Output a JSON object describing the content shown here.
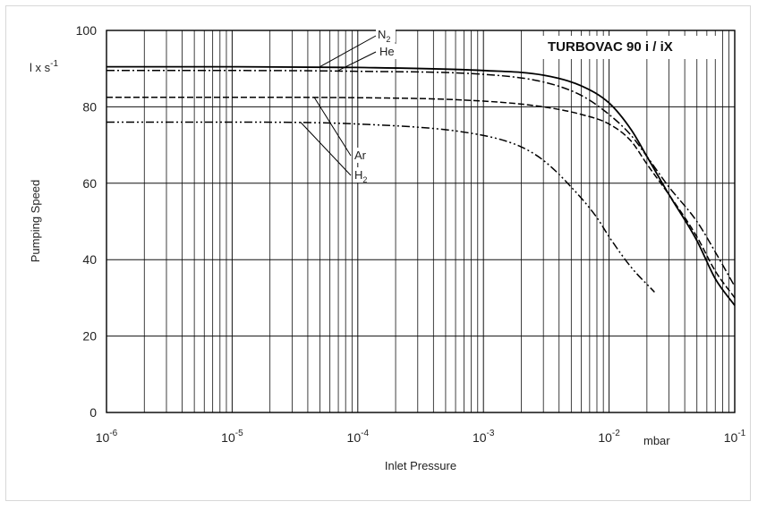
{
  "chart_data": {
    "type": "line",
    "title": "TURBOVAC 90 i / iX",
    "xlabel": "Inlet Pressure",
    "x_unit": "mbar",
    "ylabel": "Pumping Speed",
    "y_unit": "l x s",
    "y_unit_exponent": "-1",
    "x_scale": "log",
    "xlim": [
      1e-06,
      0.1
    ],
    "ylim": [
      0,
      100
    ],
    "grid": true,
    "legend": "leader-line labels at upper-left",
    "x_ticks": [
      {
        "value": 1e-06,
        "base": "10",
        "exp": "-6"
      },
      {
        "value": 1e-05,
        "base": "10",
        "exp": "-5"
      },
      {
        "value": 0.0001,
        "base": "10",
        "exp": "-4"
      },
      {
        "value": 0.001,
        "base": "10",
        "exp": "-3"
      },
      {
        "value": 0.01,
        "base": "10",
        "exp": "-2"
      },
      {
        "value": 0.1,
        "base": "10",
        "exp": "-1"
      }
    ],
    "y_ticks": [
      "0",
      "20",
      "40",
      "60",
      "80",
      "100"
    ],
    "series": [
      {
        "name": "N",
        "sub": "2",
        "style": "solid",
        "x": [
          1e-06,
          1e-05,
          0.0001,
          0.001,
          0.003,
          0.006,
          0.01,
          0.015,
          0.02,
          0.03,
          0.05,
          0.07,
          0.1
        ],
        "y": [
          90.5,
          90.5,
          90.3,
          89.5,
          88.3,
          85.5,
          81,
          74,
          67,
          57,
          45,
          35,
          28
        ]
      },
      {
        "name": "He",
        "sub": "",
        "style": "dashdot",
        "x": [
          1e-06,
          1e-05,
          0.0001,
          0.001,
          0.003,
          0.006,
          0.01,
          0.015,
          0.02,
          0.03,
          0.05,
          0.07,
          0.1
        ],
        "y": [
          89.5,
          89.5,
          89.3,
          88.5,
          86.5,
          83,
          78,
          72.5,
          67,
          59,
          50,
          42,
          33
        ]
      },
      {
        "name": "Ar",
        "sub": "",
        "style": "dashed",
        "x": [
          1e-06,
          1e-05,
          0.0001,
          0.001,
          0.003,
          0.006,
          0.01,
          0.015,
          0.02,
          0.03,
          0.05,
          0.07,
          0.1
        ],
        "y": [
          82.5,
          82.5,
          82.4,
          81.5,
          80,
          78,
          75.5,
          71,
          65,
          57,
          46,
          37,
          30
        ]
      },
      {
        "name": "H",
        "sub": "2",
        "style": "dashdotdot",
        "x": [
          1e-06,
          1e-05,
          0.0001,
          0.001,
          0.002,
          0.003,
          0.005,
          0.008,
          0.01,
          0.015,
          0.023
        ],
        "y": [
          76,
          76,
          75.5,
          72.5,
          69.5,
          66,
          59,
          51,
          46,
          38,
          31.5
        ]
      }
    ]
  }
}
